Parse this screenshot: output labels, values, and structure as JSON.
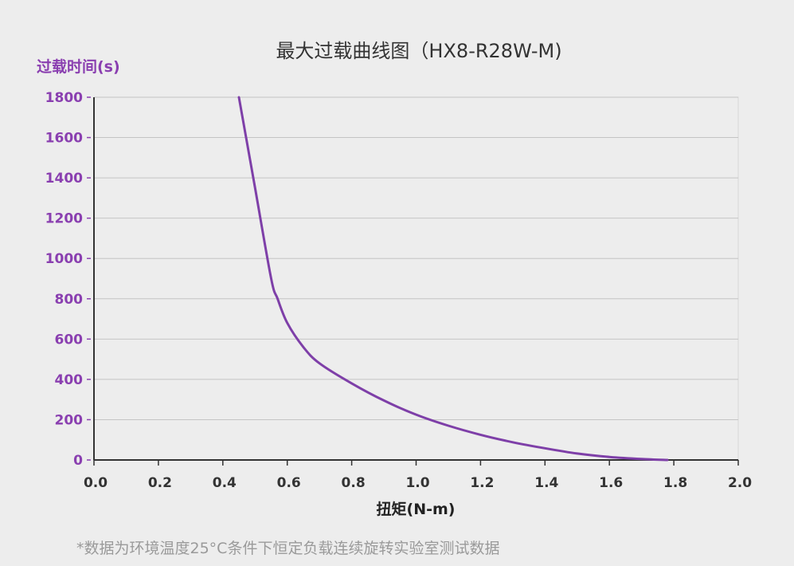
{
  "chart_data": {
    "type": "line",
    "title": "最大过载曲线图（HX8-R28W-M)",
    "xlabel": "扭矩(N-m)",
    "ylabel": "过载时间(s)",
    "xlim": [
      0.0,
      2.0
    ],
    "ylim": [
      0,
      1800
    ],
    "xticks": [
      "0.0",
      "0.2",
      "0.4",
      "0.6",
      "0.8",
      "1.0",
      "1.2",
      "1.4",
      "1.6",
      "1.8",
      "2.0"
    ],
    "yticks": [
      "0",
      "200",
      "400",
      "600",
      "800",
      "1000",
      "1200",
      "1400",
      "1600",
      "1800"
    ],
    "grid": "horizontal",
    "series": [
      {
        "x": [
          0.45,
          0.5,
          0.55,
          0.57,
          0.6,
          0.65,
          0.7,
          0.8,
          0.9,
          1.0,
          1.1,
          1.2,
          1.3,
          1.4,
          1.5,
          1.6,
          1.7,
          1.78
        ],
        "y": [
          1800,
          1350,
          900,
          800,
          680,
          560,
          480,
          380,
          295,
          225,
          170,
          125,
          88,
          58,
          32,
          15,
          5,
          0
        ]
      }
    ]
  },
  "colors": {
    "line": "#7e3fa8",
    "ylabel": "#8a3fb0",
    "ytick": "#8a3fb0",
    "grid": "#c4c4c4",
    "axis": "#333333",
    "footnote": "#9a9a9a"
  },
  "footnote": "*数据为环境温度25°C条件下恒定负载连续旋转实验室测试数据"
}
